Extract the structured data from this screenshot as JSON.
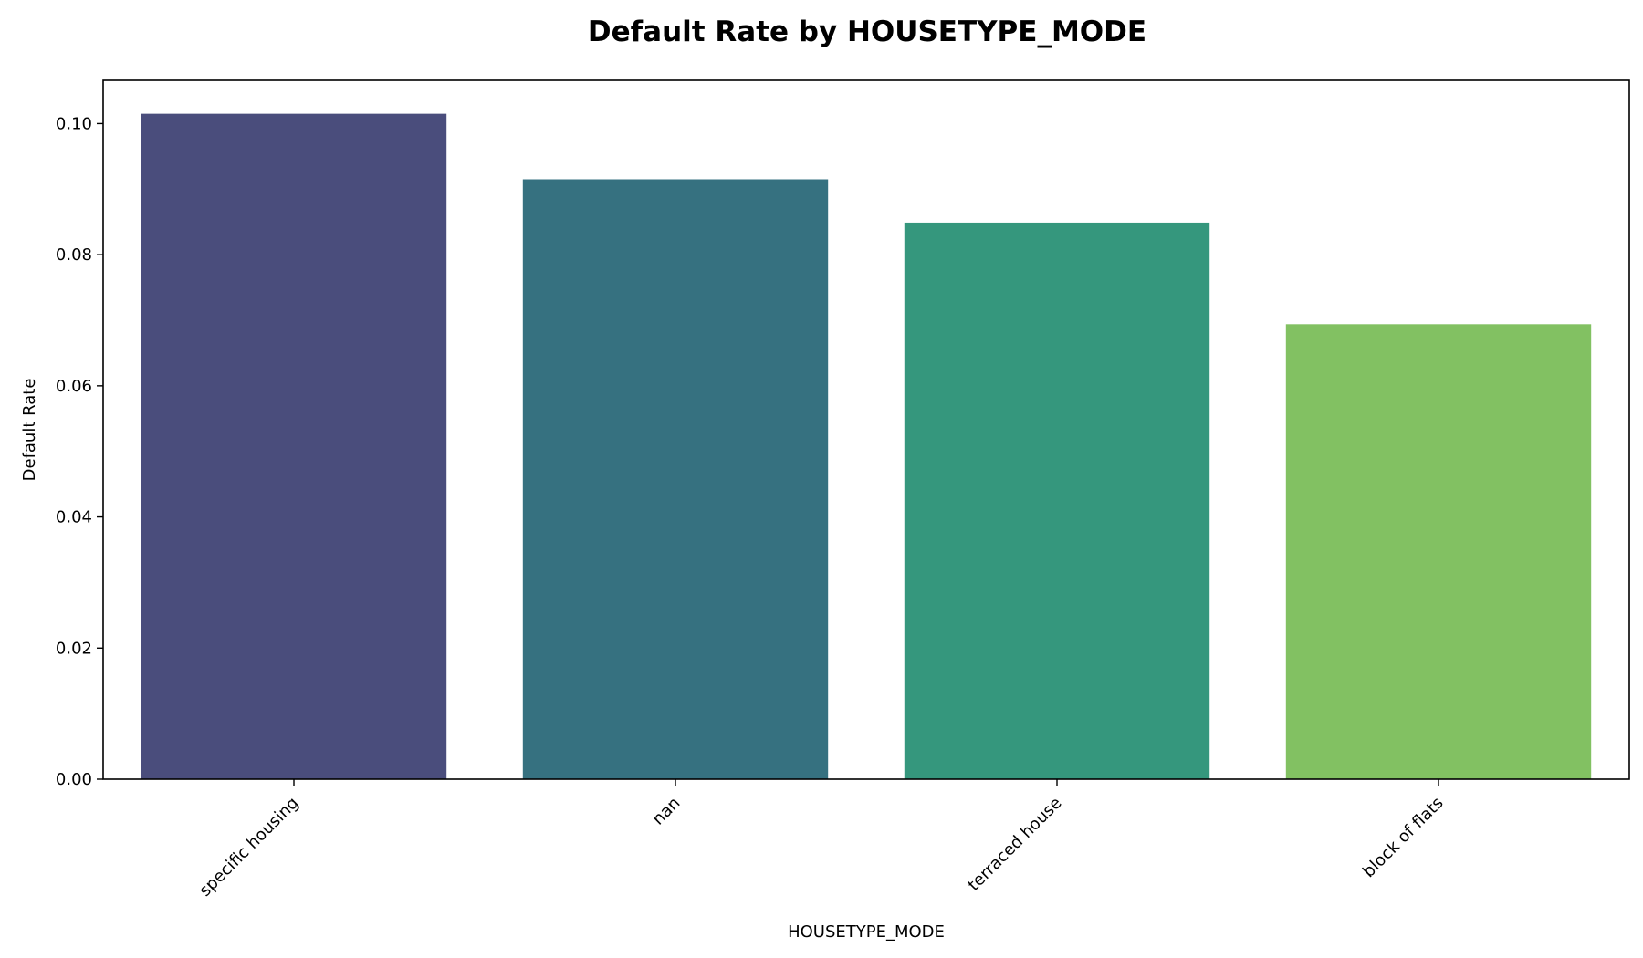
{
  "chart_data": {
    "type": "bar",
    "title": "Default Rate by HOUSETYPE_MODE",
    "xlabel": "HOUSETYPE_MODE",
    "ylabel": "Default Rate",
    "categories": [
      "specific housing",
      "nan",
      "terraced house",
      "block of flats"
    ],
    "values": [
      0.1015,
      0.0915,
      0.0849,
      0.0694
    ],
    "colors": [
      "#4a4d7c",
      "#367180",
      "#35977d",
      "#82c162"
    ],
    "ylim": [
      0,
      0.1066
    ],
    "yticks": [
      0.0,
      0.02,
      0.04,
      0.06,
      0.08,
      0.1
    ],
    "ytick_labels": [
      "0.00",
      "0.02",
      "0.04",
      "0.06",
      "0.08",
      "0.10"
    ],
    "grid": false,
    "legend": "none"
  }
}
